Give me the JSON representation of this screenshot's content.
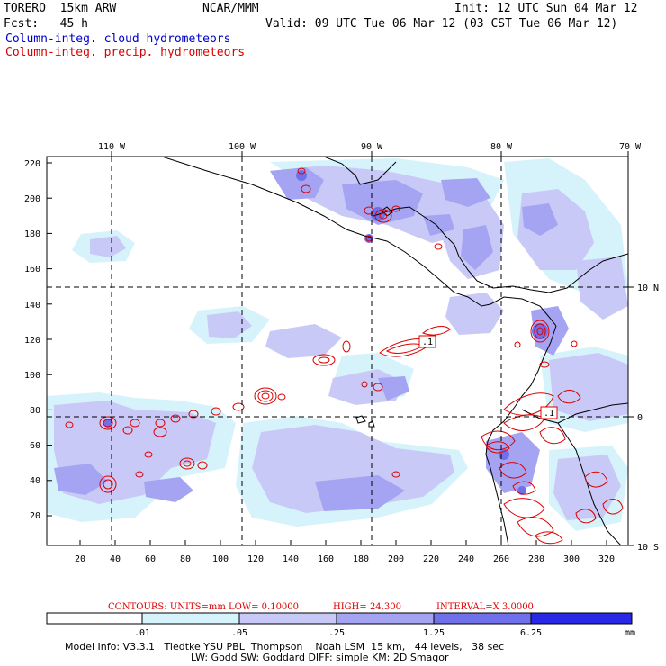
{
  "header": {
    "model": "TORERO  15km ARW",
    "org": "NCAR/MMM",
    "init": "Init: 12 UTC Sun 04 Mar 12",
    "fcst": "Fcst:   45 h",
    "valid": "Valid: 09 UTC Tue 06 Mar 12 (03 CST Tue 06 Mar 12)",
    "legend_cloud": "Column-integ. cloud hydrometeors",
    "legend_precip": "Column-integ. precip. hydrometeors"
  },
  "colors": {
    "cloud": "#0000cc",
    "precip": "#dd0000",
    "shade_light": "#cfeff8",
    "shade_mid": "#b8b8f6",
    "shade_dark": "#8e8ef0",
    "shade_deep": "#6a6ae8"
  },
  "map": {
    "top_labels": [
      "110 W",
      "100 W",
      "90 W",
      "80 W",
      "70 W"
    ],
    "right_labels": [
      "10 N",
      "0",
      "10 S"
    ],
    "x_ticks": [
      "20",
      "40",
      "60",
      "80",
      "100",
      "120",
      "140",
      "160",
      "180",
      "200",
      "220",
      "240",
      "260",
      "280",
      "300",
      "320"
    ],
    "y_ticks": [
      "220",
      "200",
      "180",
      "160",
      "140",
      "120",
      "100",
      "80",
      "60",
      "40",
      "20"
    ],
    "box_labels": [
      ".1",
      ".1"
    ]
  },
  "contours_line": {
    "text_contours": "CONTOURS:  UNITS=mm  LOW= 0.10000",
    "text_high": "HIGH=  24.300",
    "text_interval": "INTERVAL=X  3.0000"
  },
  "colorbar": {
    "labels": [
      ".01",
      ".05",
      ".25",
      "1.25",
      "6.25"
    ],
    "unit": "mm",
    "colors": [
      "#ffffff",
      "#d6f3fb",
      "#c9c9f8",
      "#a4a4f2",
      "#7070ea",
      "#4040e4",
      "#2020e8"
    ]
  },
  "footer": {
    "line1": "Model Info: V3.3.1   Tiedtke YSU PBL  Thompson    Noah LSM  15 km,   44 levels,   38 sec",
    "line2": "LW: Godd SW: Goddard DIFF: simple KM: 2D Smagor"
  }
}
